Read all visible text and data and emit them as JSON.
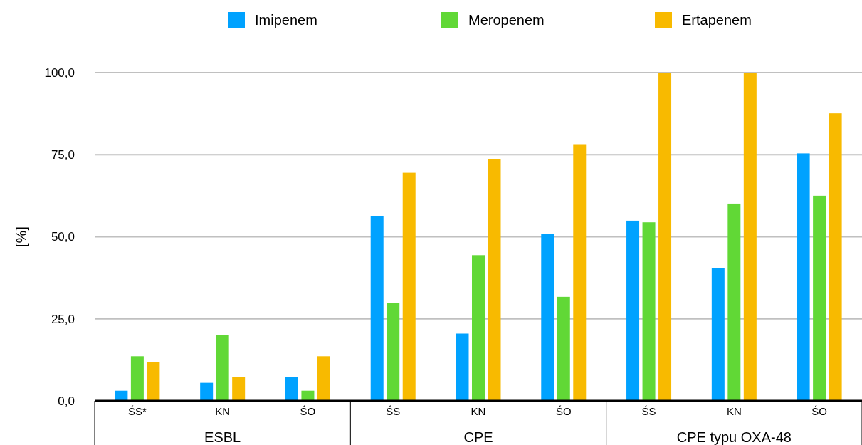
{
  "chart_data": {
    "type": "bar",
    "ylabel": "[%]",
    "categories": [
      "ŚS*",
      "KN",
      "ŚO",
      "ŚS",
      "KN",
      "ŚO",
      "ŚS",
      "KN",
      "ŚO"
    ],
    "annotations": [
      "ESBL",
      "CPE",
      "CPE typu OXA-48"
    ],
    "series": [
      {
        "name": "Imipenem",
        "color": "#00a2ff",
        "values": [
          3.1,
          5.5,
          7.3,
          56.2,
          20.5,
          50.9,
          54.9,
          40.5,
          75.4
        ]
      },
      {
        "name": "Meropenem",
        "color": "#61d836",
        "values": [
          13.6,
          20.0,
          3.1,
          29.9,
          44.4,
          31.7,
          54.4,
          60.1,
          62.5
        ]
      },
      {
        "name": "Ertapenem",
        "color": "#f8ba00",
        "values": [
          11.9,
          7.3,
          13.6,
          69.5,
          73.6,
          78.2,
          100,
          100,
          87.6
        ]
      }
    ],
    "ylim": [
      0,
      100
    ],
    "yticks": [
      {
        "value": 0,
        "label": "0,0"
      },
      {
        "value": 25,
        "label": "25,0"
      },
      {
        "value": 50,
        "label": "50,0"
      },
      {
        "value": 75,
        "label": "75,0"
      },
      {
        "value": 100,
        "label": "100,0"
      }
    ],
    "grid": "y",
    "legend": "top"
  }
}
